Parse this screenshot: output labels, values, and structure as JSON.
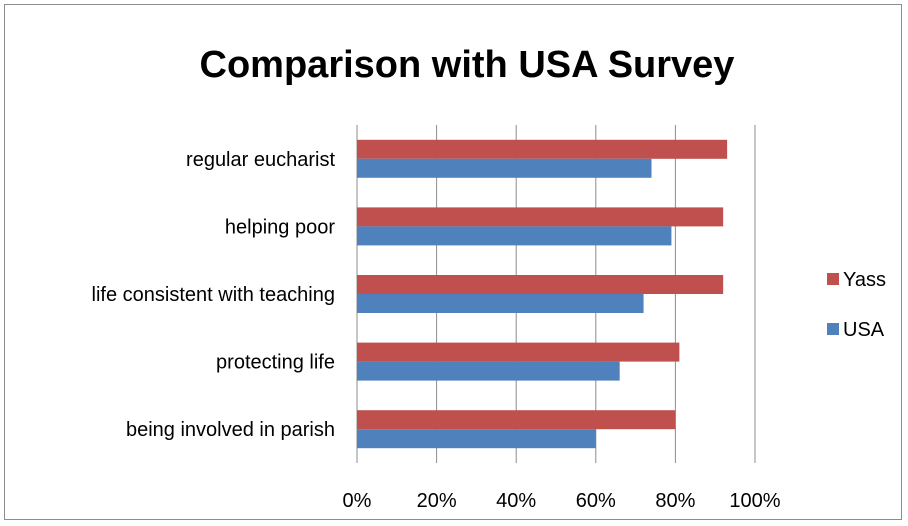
{
  "chart_data": {
    "type": "bar",
    "orientation": "horizontal",
    "title": "Comparison with USA Survey",
    "xlabel": "",
    "ylabel": "",
    "categories": [
      "regular eucharist",
      "helping poor",
      "life consistent with teaching",
      "protecting life",
      "being involved in parish"
    ],
    "series": [
      {
        "name": "Yass",
        "color": "#c0504d",
        "values": [
          0.93,
          0.92,
          0.92,
          0.81,
          0.8
        ]
      },
      {
        "name": "USA",
        "color": "#4f81bd",
        "values": [
          0.74,
          0.79,
          0.72,
          0.66,
          0.6
        ]
      }
    ],
    "xlim": [
      0,
      1
    ],
    "xticks": [
      "0%",
      "20%",
      "40%",
      "60%",
      "80%",
      "100%"
    ],
    "grid": "vertical",
    "legend": "right"
  }
}
